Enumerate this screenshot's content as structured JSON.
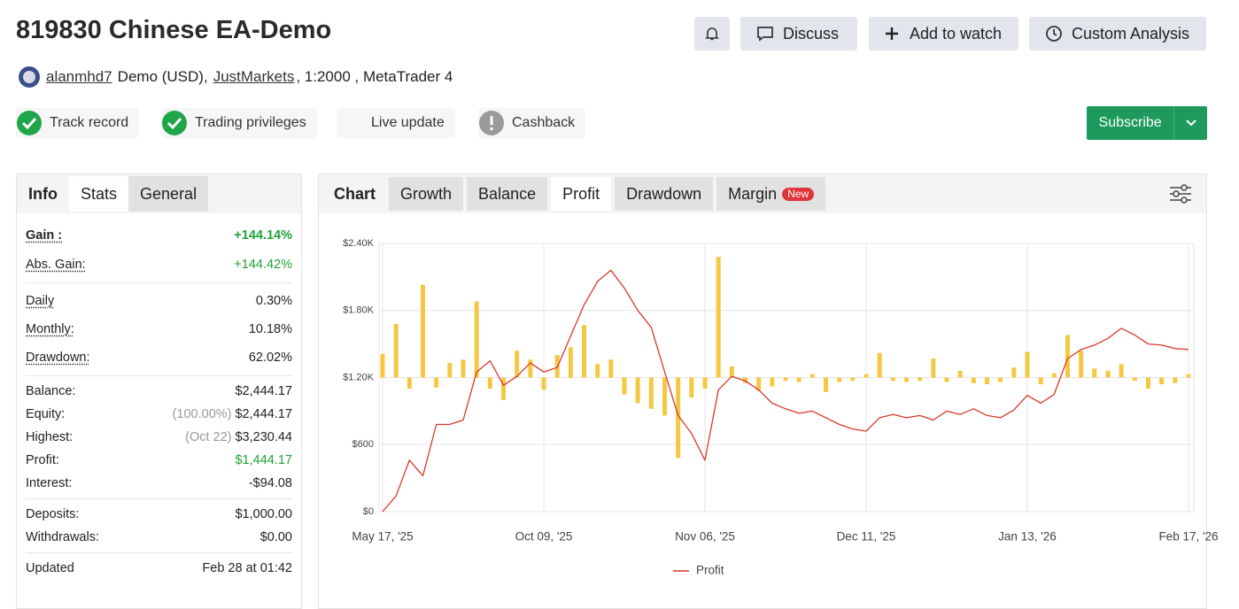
{
  "header": {
    "title": "819830 Chinese EA-Demo",
    "buttons": [
      "Discuss",
      "Add to watch",
      "Custom Analysis"
    ],
    "user": "alanmhd7",
    "account_type": "Demo (USD),",
    "broker": "JustMarkets",
    "details": ", 1:2000 , MetaTrader 4",
    "badges": [
      "Track record",
      "Trading privileges",
      "Live update",
      "Cashback"
    ],
    "subscribe": "Subscribe"
  },
  "stats": {
    "tabs": [
      "Info",
      "Stats",
      "General"
    ],
    "groups": [
      [
        {
          "label": "Gain :",
          "value": "+144.14%",
          "color": "#21a336"
        },
        {
          "label": "Abs. Gain:",
          "value": "+144.42%",
          "color": "#21a336"
        }
      ],
      [
        {
          "label": "Daily",
          "value": "0.30%"
        },
        {
          "label": "Monthly:",
          "value": "10.18%"
        },
        {
          "label": "Drawdown:",
          "value": "62.02%"
        }
      ],
      [
        {
          "label": "Balance:",
          "value": "$2,444.17"
        },
        {
          "label": "Equity:",
          "note": "(100.00%)",
          "value": "$2,444.17"
        },
        {
          "label": "Highest:",
          "note": "(Oct 22)",
          "value": "$3,230.44"
        },
        {
          "label": "Profit:",
          "value": "$1,444.17",
          "color": "#21a336"
        },
        {
          "label": "Interest:",
          "value": "-$94.08"
        }
      ],
      [
        {
          "label": "Deposits:",
          "value": "$1,000.00"
        },
        {
          "label": "Withdrawals:",
          "value": "$0.00"
        }
      ],
      [
        {
          "label": "Updated",
          "value": "Feb 28 at 01:42"
        }
      ]
    ]
  },
  "chart_tabs": {
    "label": "Chart",
    "tabs": [
      "Growth",
      "Balance",
      "Profit",
      "Drawdown",
      "Margin"
    ],
    "active": 2,
    "new_badge": "New"
  },
  "chart_data": {
    "type": "line",
    "categories": [
      "May 17, '25",
      null,
      null,
      null,
      null,
      null,
      null,
      null,
      null,
      null,
      null,
      null,
      "Oct 09, '25",
      null,
      null,
      null,
      null,
      null,
      null,
      null,
      null,
      null,
      null,
      null,
      "Nov 06, '25",
      null,
      null,
      null,
      null,
      null,
      null,
      null,
      null,
      null,
      null,
      null,
      "Dec 11, '25",
      null,
      null,
      null,
      null,
      null,
      null,
      null,
      null,
      null,
      null,
      null,
      "Jan 13, '26",
      null,
      null,
      null,
      null,
      null,
      null,
      null,
      null,
      null,
      null,
      null,
      "Feb 17, '26"
    ],
    "series": [
      {
        "name": "Profit",
        "color": "#d9382b",
        "values": [
          0,
          140,
          460,
          320,
          780,
          780,
          820,
          1250,
          1350,
          1130,
          1210,
          1330,
          1250,
          1290,
          1570,
          1850,
          2060,
          2160,
          2000,
          1800,
          1650,
          1250,
          860,
          700,
          460,
          1090,
          1210,
          1170,
          1090,
          970,
          920,
          880,
          900,
          840,
          780,
          740,
          720,
          840,
          870,
          840,
          860,
          820,
          900,
          870,
          920,
          860,
          840,
          910,
          1040,
          970,
          1050,
          1370,
          1450,
          1490,
          1550,
          1640,
          1580,
          1500,
          1490,
          1460,
          1450
        ]
      },
      {
        "type": "bar",
        "axis": "y2",
        "color": "#f5c842",
        "values": [
          210,
          480,
          -100,
          830,
          -90,
          130,
          160,
          680,
          -100,
          -200,
          240,
          160,
          -110,
          200,
          270,
          470,
          120,
          160,
          -150,
          -230,
          -280,
          -340,
          -720,
          -180,
          -100,
          1080,
          100,
          -50,
          -120,
          -80,
          -30,
          -40,
          30,
          -130,
          -40,
          -30,
          30,
          220,
          -30,
          -40,
          -30,
          170,
          -40,
          60,
          -50,
          -60,
          -40,
          90,
          230,
          -60,
          40,
          380,
          240,
          80,
          60,
          120,
          -30,
          -100,
          -60,
          -50,
          30
        ]
      }
    ],
    "ylim": [
      0,
      2400
    ],
    "yticks": [
      {
        "value": 0,
        "label": "$0"
      },
      {
        "value": 600,
        "label": "$600"
      },
      {
        "value": 1200,
        "label": "$1.20K"
      },
      {
        "value": 1800,
        "label": "$1.80K"
      },
      {
        "value": 2400,
        "label": "$2.40K"
      }
    ],
    "y2lim": [
      -1200,
      1200
    ],
    "grid": true,
    "legend": "bottom"
  }
}
